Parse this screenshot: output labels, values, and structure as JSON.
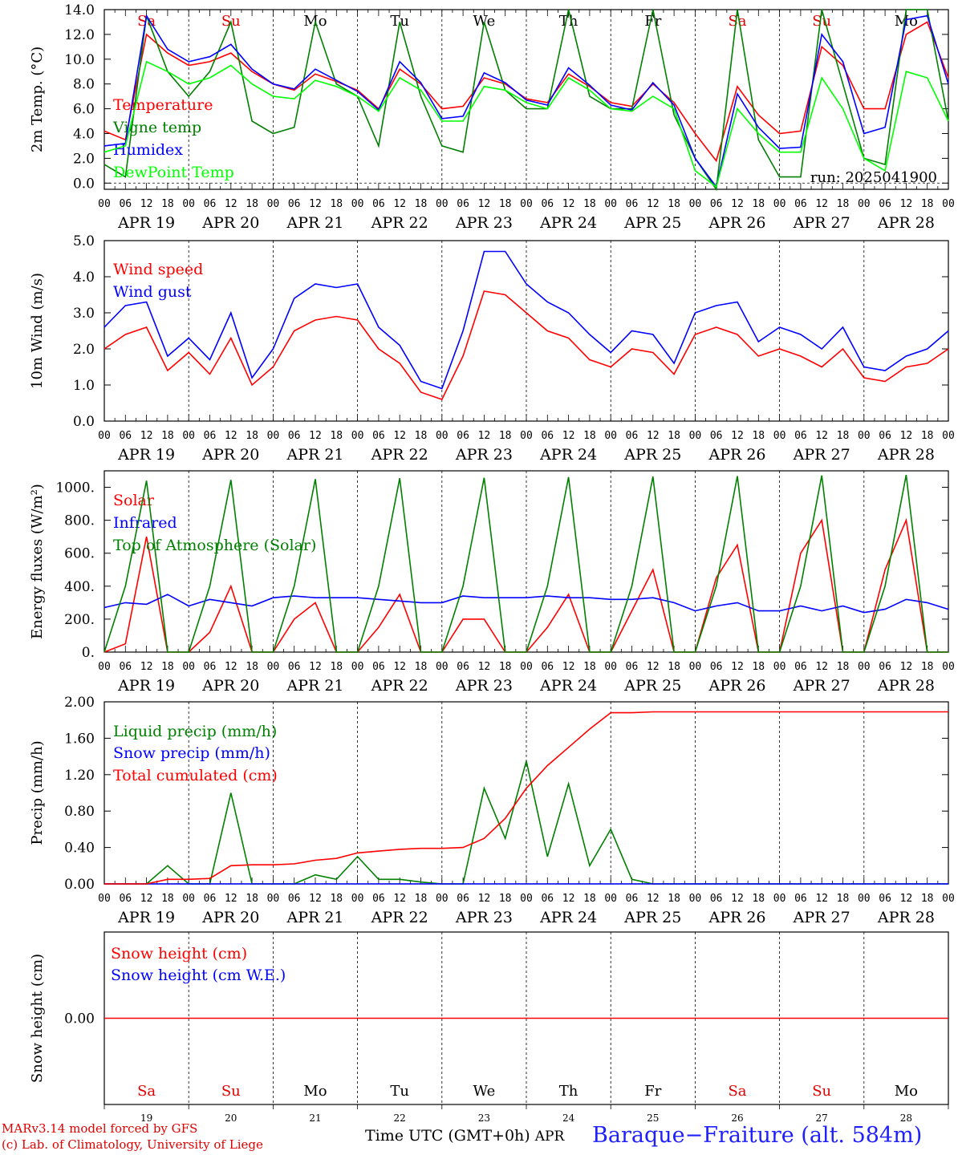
{
  "days": [
    "Sa",
    "Su",
    "Mo",
    "Tu",
    "We",
    "Th",
    "Fr",
    "Sa",
    "Su",
    "Mo"
  ],
  "day_colors": [
    "#e00000",
    "#e00000",
    "#000000",
    "#000000",
    "#000000",
    "#000000",
    "#000000",
    "#e00000",
    "#e00000",
    "#000000"
  ],
  "date_labels": [
    "APR 19",
    "APR 20",
    "APR 21",
    "APR 22",
    "APR 23",
    "APR 24",
    "APR 25",
    "APR 26",
    "APR 27",
    "APR 28"
  ],
  "day_numbers": [
    "19",
    "20",
    "21",
    "22",
    "23",
    "24",
    "25",
    "26",
    "27",
    "28"
  ],
  "hour_ticks": [
    "00",
    "06",
    "12",
    "18"
  ],
  "footer": {
    "credit_line1": "MARv3.14 model forced by GFS",
    "credit_line2": "(c) Lab. of Climatology, University of Liege",
    "time_label": "Time UTC (GMT+0h)",
    "month": "APR",
    "station": "Baraque−Fraiture (alt. 584m)"
  },
  "chart_data": [
    {
      "type": "line",
      "ylabel": "2m Temp. (°C)",
      "ylim": [
        -0.5,
        14.0
      ],
      "yticks": [
        "0.0",
        "2.0",
        "4.0",
        "6.0",
        "8.0",
        "10.0",
        "12.0",
        "14.0"
      ],
      "annotation": "run: 2025041900",
      "x_hours": [
        0,
        6,
        12,
        18,
        24,
        30,
        36,
        42,
        48,
        54,
        60,
        66,
        72,
        78,
        84,
        90,
        96,
        102,
        108,
        114,
        120,
        126,
        132,
        138,
        144,
        150,
        156,
        162,
        168,
        174,
        180,
        186,
        192,
        198,
        204,
        210,
        216,
        222,
        228,
        234,
        240
      ],
      "series": [
        {
          "name": "Temperature",
          "color": "#ff0000",
          "values": [
            4.2,
            3.5,
            12.0,
            10.5,
            9.5,
            9.8,
            10.5,
            9.0,
            8.0,
            7.5,
            8.8,
            8.2,
            7.5,
            6.0,
            9.2,
            8.0,
            6.0,
            6.2,
            8.5,
            8.0,
            6.8,
            6.5,
            8.8,
            7.8,
            6.5,
            6.2,
            8.0,
            6.5,
            4.0,
            1.8,
            7.8,
            5.5,
            4.0,
            4.2,
            11.0,
            9.5,
            6.0,
            6.0,
            12.0,
            13.0,
            8.5
          ]
        },
        {
          "name": "Vigne temp",
          "color": "#008000",
          "values": [
            1.5,
            0.5,
            13.5,
            9.0,
            7.0,
            9.0,
            13.0,
            5.0,
            4.0,
            4.5,
            13.0,
            8.0,
            7.0,
            3.0,
            13.0,
            7.0,
            3.0,
            2.5,
            13.0,
            7.5,
            6.0,
            6.0,
            14.0,
            7.0,
            6.0,
            6.0,
            14.0,
            5.5,
            2.0,
            -0.5,
            14.0,
            3.5,
            0.5,
            0.5,
            14.0,
            8.0,
            2.0,
            1.5,
            14.0,
            14.0,
            5.0
          ]
        },
        {
          "name": "Humidex",
          "color": "#0000ff",
          "values": [
            3.0,
            3.2,
            13.5,
            10.8,
            9.8,
            10.2,
            11.2,
            9.2,
            8.0,
            7.6,
            9.2,
            8.3,
            7.4,
            5.9,
            9.8,
            8.1,
            5.2,
            5.4,
            8.9,
            8.1,
            6.7,
            6.3,
            9.3,
            7.9,
            6.3,
            5.9,
            8.1,
            6.3,
            2.0,
            -0.3,
            7.2,
            4.5,
            2.8,
            2.9,
            12.0,
            9.8,
            4.0,
            4.5,
            13.2,
            13.5,
            8.0
          ]
        },
        {
          "name": "DewPoint Temp",
          "color": "#00ff00",
          "values": [
            2.5,
            3.0,
            9.8,
            9.0,
            8.0,
            8.5,
            9.5,
            8.0,
            7.0,
            6.8,
            8.3,
            7.8,
            7.0,
            5.8,
            8.5,
            7.5,
            5.0,
            5.0,
            7.8,
            7.5,
            6.5,
            6.0,
            8.5,
            7.5,
            6.0,
            5.8,
            7.0,
            6.0,
            1.0,
            -0.3,
            6.0,
            4.0,
            2.5,
            2.5,
            8.5,
            6.0,
            2.0,
            1.0,
            9.0,
            8.5,
            5.0
          ]
        }
      ]
    },
    {
      "type": "line",
      "ylabel": "10m Wind (m/s)",
      "ylim": [
        0.0,
        5.0
      ],
      "yticks": [
        "0.0",
        "1.0",
        "2.0",
        "3.0",
        "4.0",
        "5.0"
      ],
      "x_hours": [
        0,
        6,
        12,
        18,
        24,
        30,
        36,
        42,
        48,
        54,
        60,
        66,
        72,
        78,
        84,
        90,
        96,
        102,
        108,
        114,
        120,
        126,
        132,
        138,
        144,
        150,
        156,
        162,
        168,
        174,
        180,
        186,
        192,
        198,
        204,
        210,
        216,
        222,
        228,
        234,
        240
      ],
      "series": [
        {
          "name": "Wind speed",
          "color": "#ff0000",
          "values": [
            2.0,
            2.4,
            2.6,
            1.4,
            1.9,
            1.3,
            2.3,
            1.0,
            1.5,
            2.5,
            2.8,
            2.9,
            2.8,
            2.0,
            1.6,
            0.8,
            0.6,
            1.8,
            3.6,
            3.5,
            3.0,
            2.5,
            2.3,
            1.7,
            1.5,
            2.0,
            1.9,
            1.3,
            2.4,
            2.6,
            2.4,
            1.8,
            2.0,
            1.8,
            1.5,
            2.0,
            1.2,
            1.1,
            1.5,
            1.6,
            2.0
          ]
        },
        {
          "name": "Wind gust",
          "color": "#0000ff",
          "values": [
            2.6,
            3.2,
            3.3,
            1.8,
            2.3,
            1.7,
            3.0,
            1.2,
            2.0,
            3.4,
            3.8,
            3.7,
            3.8,
            2.6,
            2.1,
            1.1,
            0.9,
            2.5,
            4.7,
            4.7,
            3.8,
            3.3,
            3.0,
            2.4,
            1.9,
            2.5,
            2.4,
            1.6,
            3.0,
            3.2,
            3.3,
            2.2,
            2.6,
            2.4,
            2.0,
            2.6,
            1.5,
            1.4,
            1.8,
            2.0,
            2.5
          ]
        }
      ]
    },
    {
      "type": "line",
      "ylabel": "Energy fluxes (W/m²)",
      "ylim": [
        0,
        1100
      ],
      "yticks": [
        "0.",
        "200.",
        "400.",
        "600.",
        "800.",
        "1000."
      ],
      "x_hours": [
        0,
        6,
        12,
        18,
        24,
        30,
        36,
        42,
        48,
        54,
        60,
        66,
        72,
        78,
        84,
        90,
        96,
        102,
        108,
        114,
        120,
        126,
        132,
        138,
        144,
        150,
        156,
        162,
        168,
        174,
        180,
        186,
        192,
        198,
        204,
        210,
        216,
        222,
        228,
        234,
        240
      ],
      "series": [
        {
          "name": "Solar",
          "color": "#ff0000",
          "values": [
            0,
            50,
            700,
            0,
            0,
            120,
            400,
            0,
            0,
            200,
            300,
            0,
            0,
            150,
            350,
            0,
            0,
            200,
            200,
            0,
            0,
            150,
            350,
            0,
            0,
            250,
            500,
            0,
            0,
            450,
            650,
            0,
            0,
            600,
            800,
            0,
            0,
            500,
            800,
            0,
            0
          ]
        },
        {
          "name": "Infrared",
          "color": "#0000ff",
          "values": [
            270,
            300,
            290,
            350,
            280,
            320,
            300,
            280,
            330,
            340,
            330,
            330,
            330,
            320,
            310,
            300,
            300,
            340,
            330,
            330,
            330,
            340,
            330,
            330,
            320,
            320,
            330,
            300,
            250,
            280,
            300,
            250,
            250,
            280,
            250,
            280,
            240,
            260,
            320,
            300,
            260
          ]
        },
        {
          "name": "Top of Atmosphere (Solar)",
          "color": "#008000",
          "values": [
            0,
            400,
            1040,
            0,
            0,
            400,
            1045,
            0,
            0,
            400,
            1050,
            0,
            0,
            400,
            1055,
            0,
            0,
            400,
            1058,
            0,
            0,
            400,
            1062,
            0,
            0,
            400,
            1065,
            0,
            0,
            400,
            1068,
            0,
            0,
            400,
            1072,
            0,
            0,
            400,
            1075,
            0,
            0
          ]
        }
      ]
    },
    {
      "type": "line",
      "ylabel": "Precip (mm/h)",
      "ylim": [
        0.0,
        2.0
      ],
      "yticks": [
        "0.00",
        "0.40",
        "0.80",
        "1.20",
        "1.60",
        "2.00"
      ],
      "x_hours": [
        0,
        6,
        12,
        18,
        24,
        30,
        36,
        42,
        48,
        54,
        60,
        66,
        72,
        78,
        84,
        90,
        96,
        102,
        108,
        114,
        120,
        126,
        132,
        138,
        144,
        150,
        156,
        162,
        168,
        174,
        180,
        186,
        192,
        198,
        204,
        210,
        216,
        222,
        228,
        234,
        240
      ],
      "series": [
        {
          "name": "Liquid precip (mm/h)",
          "color": "#008000",
          "values": [
            0,
            0,
            0,
            0.2,
            0,
            0,
            1.0,
            0,
            0,
            0,
            0.1,
            0.05,
            0.3,
            0.05,
            0.05,
            0.02,
            0,
            0,
            1.05,
            0.5,
            1.35,
            0.3,
            1.1,
            0.2,
            0.6,
            0.05,
            0,
            0,
            0,
            0,
            0,
            0,
            0,
            0,
            0,
            0,
            0,
            0,
            0,
            0,
            0
          ]
        },
        {
          "name": "Snow precip (mm/h)",
          "color": "#0000ff",
          "values": [
            0,
            0,
            0,
            0,
            0,
            0,
            0,
            0,
            0,
            0,
            0,
            0,
            0,
            0,
            0,
            0,
            0,
            0,
            0,
            0,
            0,
            0,
            0,
            0,
            0,
            0,
            0,
            0,
            0,
            0,
            0,
            0,
            0,
            0,
            0,
            0,
            0,
            0,
            0,
            0,
            0
          ]
        },
        {
          "name": "Total cumulated (cm)",
          "color": "#ff0000",
          "values": [
            0,
            0,
            0,
            0.05,
            0.05,
            0.06,
            0.2,
            0.21,
            0.21,
            0.22,
            0.26,
            0.28,
            0.34,
            0.36,
            0.38,
            0.39,
            0.39,
            0.4,
            0.5,
            0.72,
            1.05,
            1.3,
            1.5,
            1.7,
            1.88,
            1.88,
            1.89,
            1.89,
            1.89,
            1.89,
            1.89,
            1.89,
            1.89,
            1.89,
            1.89,
            1.89,
            1.89,
            1.89,
            1.89,
            1.89,
            1.89
          ]
        }
      ]
    },
    {
      "type": "line",
      "ylabel": "Snow height (cm)",
      "ylim": [
        -1,
        1
      ],
      "yticks": [
        "0.00"
      ],
      "x_hours": [
        0,
        240
      ],
      "series": [
        {
          "name": "Snow height (cm)",
          "color": "#ff0000",
          "values": [
            0,
            0
          ]
        },
        {
          "name": "Snow height (cm W.E.)",
          "color": "#0000ff",
          "values": []
        }
      ]
    }
  ]
}
